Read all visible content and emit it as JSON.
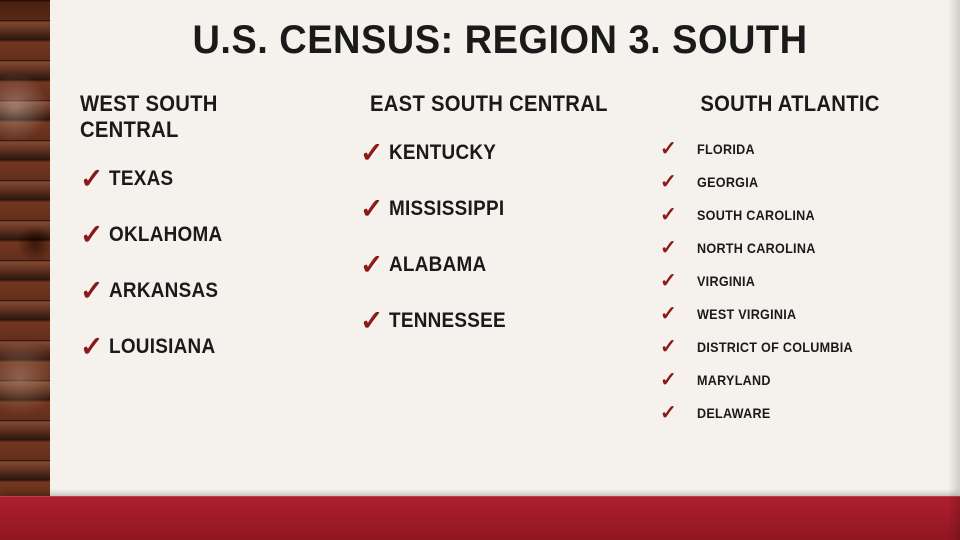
{
  "title": "U.S. CENSUS: REGION 3. SOUTH",
  "colors": {
    "accent": "#8b1a1a",
    "bottom_bar": "#a01c2a",
    "text": "#1a1a1a",
    "background": "#f5f2ed"
  },
  "columns": [
    {
      "header": "WEST SOUTH CENTRAL",
      "size": "large",
      "items": [
        "TEXAS",
        "OKLAHOMA",
        "ARKANSAS",
        "LOUISIANA"
      ]
    },
    {
      "header": "EAST SOUTH CENTRAL",
      "size": "large",
      "items": [
        "KENTUCKY",
        "MISSISSIPPI",
        "ALABAMA",
        "TENNESSEE"
      ]
    },
    {
      "header": "SOUTH ATLANTIC",
      "size": "small",
      "items": [
        "FLORIDA",
        "GEORGIA",
        "SOUTH CAROLINA",
        "NORTH CAROLINA",
        "VIRGINIA",
        "WEST VIRGINIA",
        "DISTRICT OF COLUMBIA",
        "MARYLAND",
        "DELAWARE"
      ]
    }
  ]
}
